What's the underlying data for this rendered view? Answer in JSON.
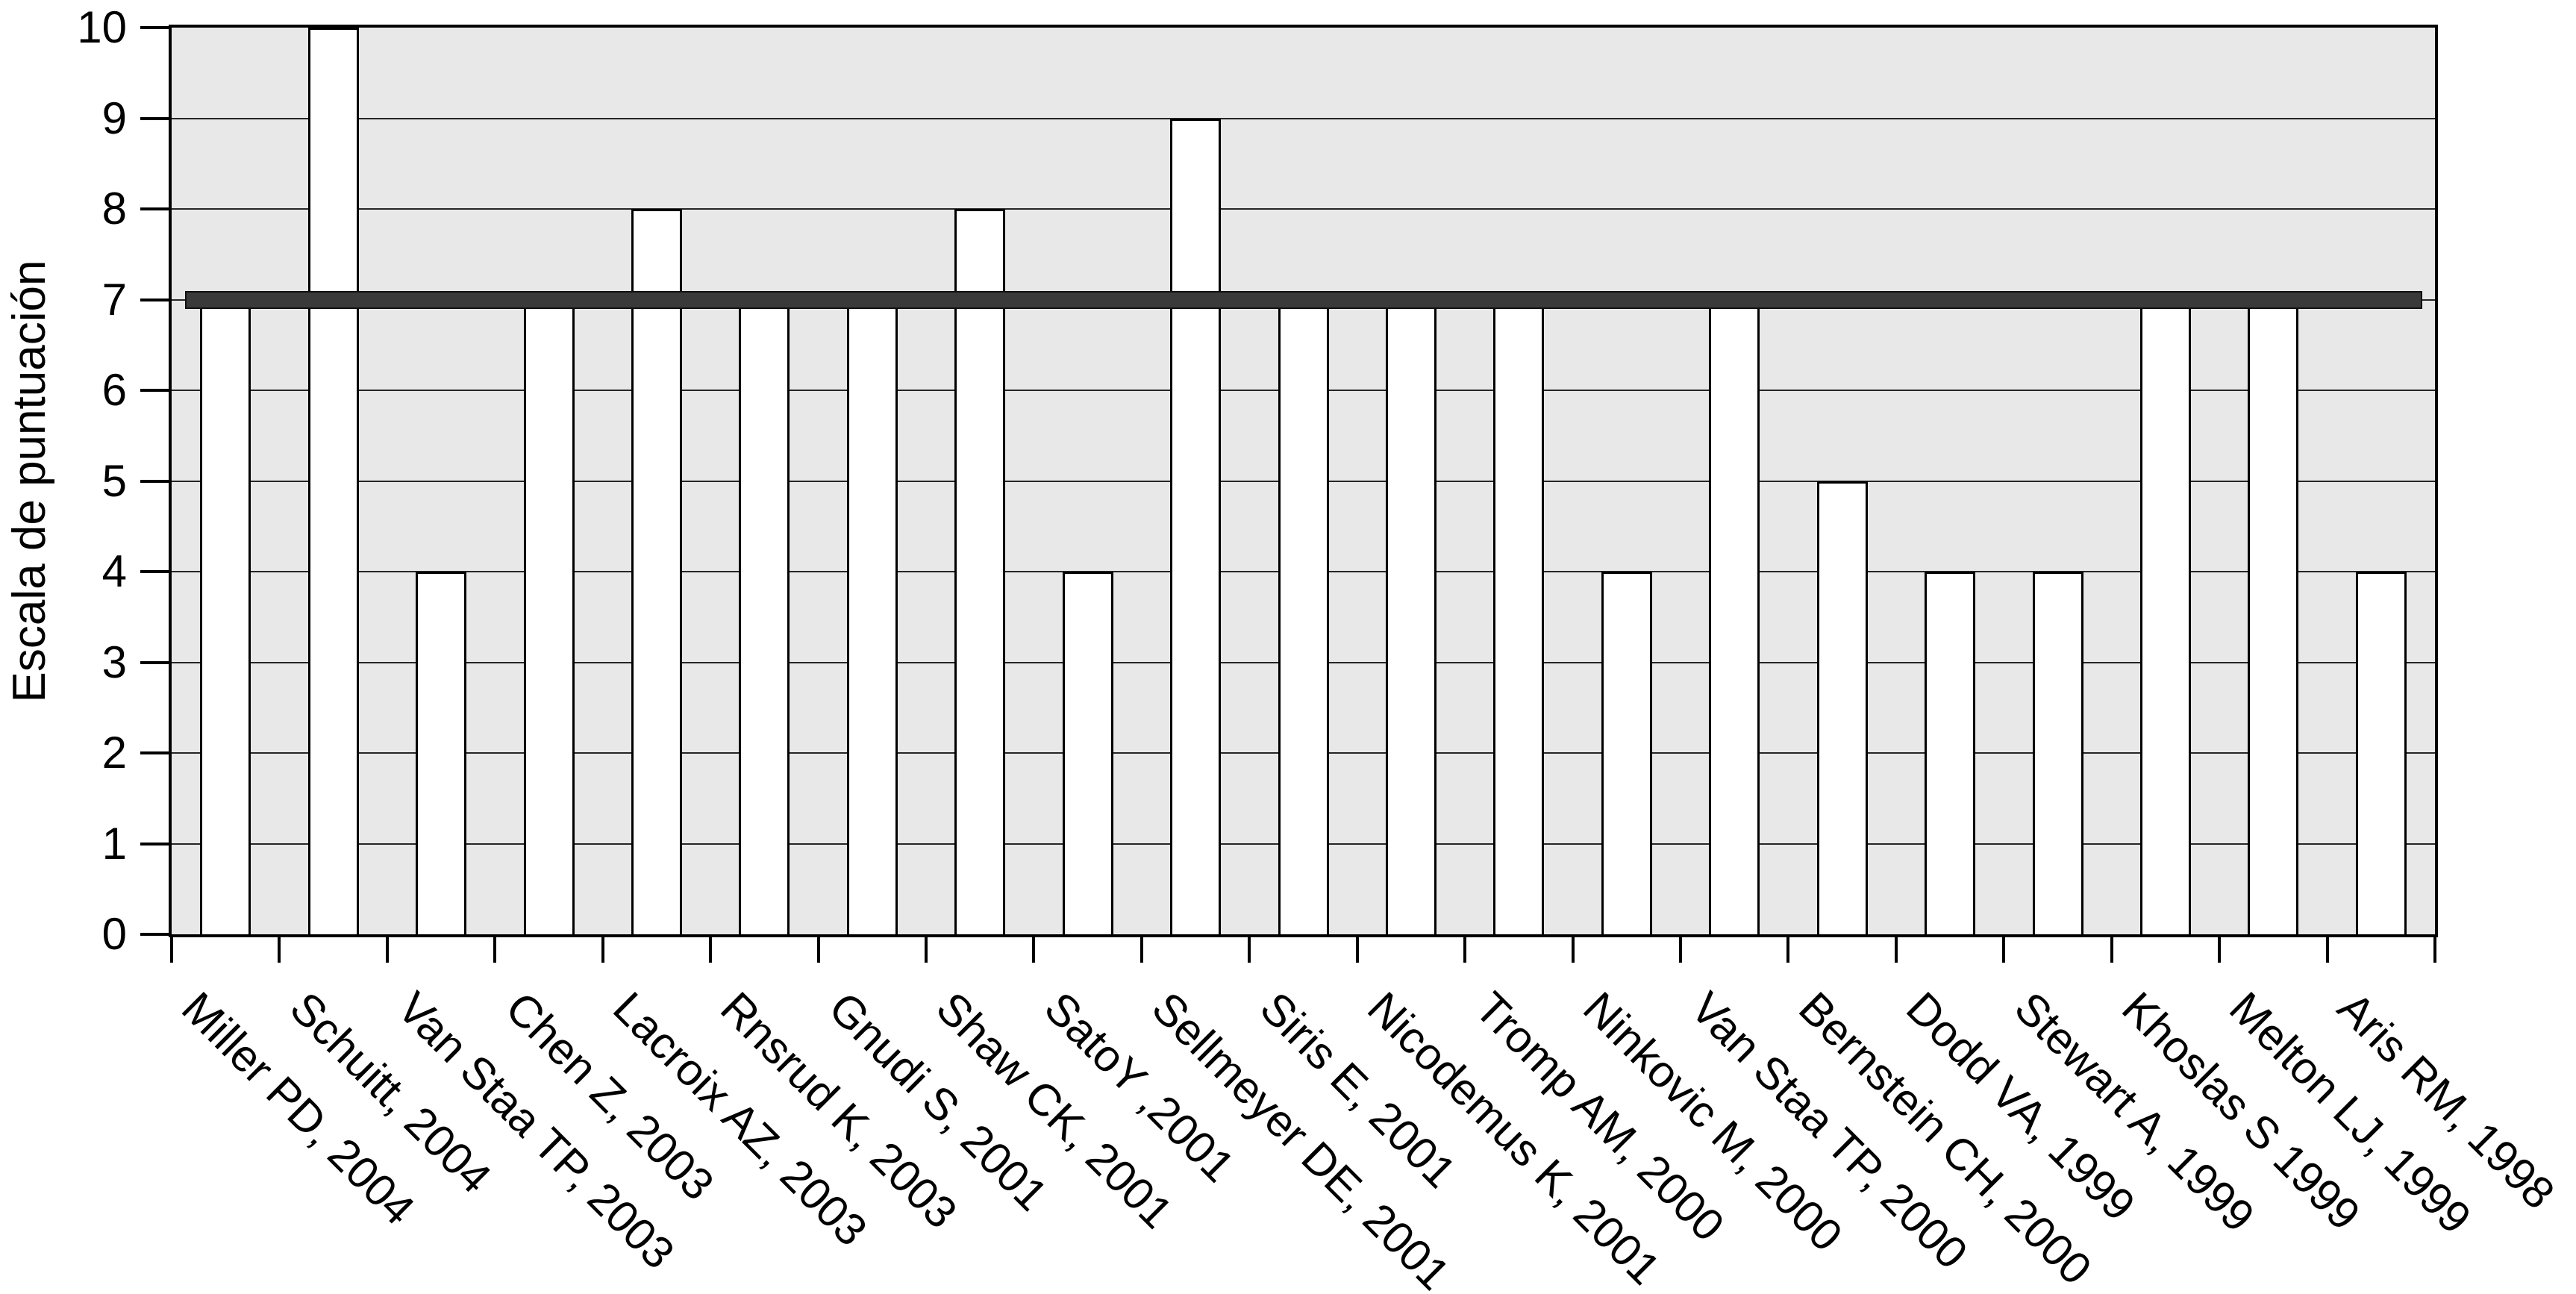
{
  "chart_data": {
    "type": "bar",
    "title": "",
    "xlabel": "",
    "ylabel": "Escala de puntuación",
    "ylim": [
      0,
      10
    ],
    "yticks": [
      0,
      1,
      2,
      3,
      4,
      5,
      6,
      7,
      8,
      9,
      10
    ],
    "grid": true,
    "legend_position": "none",
    "reference_line": {
      "value": 7
    },
    "categories": [
      "Miller PD, 2004",
      "Schuitt, 2004",
      "Van Staa TP, 2003",
      "Chen Z, 2003",
      "Lacroix AZ, 2003",
      "Rnsrud K, 2003",
      "Gnudi S, 2001",
      "Shaw CK, 2001",
      "SatoY ,2001",
      "Sellmeyer DE, 2001",
      "Siris E, 2001",
      "Nicodemus K, 2001",
      "Tromp AM, 2000",
      "Ninkovic M, 2000",
      "Van Staa TP, 2000",
      "Bernstein CH, 2000",
      "Dodd VA, 1999",
      "Stewart A, 1999",
      "Khoslas S 1999",
      "Melton LJ, 1999",
      "Aris RM, 1998"
    ],
    "values": [
      7,
      10,
      4,
      7,
      8,
      7,
      7,
      8,
      4,
      9,
      7,
      7,
      7,
      4,
      7,
      5,
      4,
      4,
      7,
      7,
      4
    ]
  },
  "style": {
    "page_bg": "#ffffff",
    "plot_bg": "#e8e8e8",
    "bar_fill": "#ffffff",
    "bar_border": "#000000",
    "grid_color": "#262626",
    "axis_color": "#000000",
    "ref_line_color": "#3a3a3a",
    "text_color": "#000000"
  }
}
